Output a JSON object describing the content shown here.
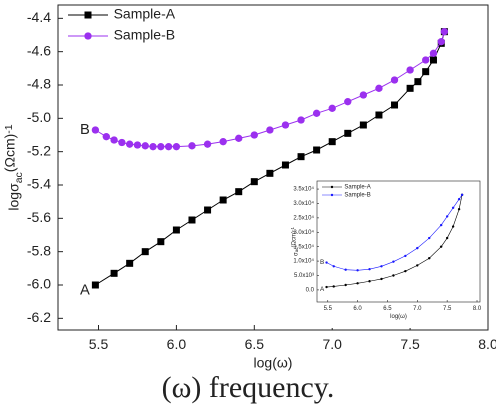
{
  "chart_data": [
    {
      "type": "scatter",
      "xlabel": "log(ω)",
      "ylabel": {
        "text": "logσ",
        "sub": "ac",
        "unit": "(Ωcm)",
        "sup": "-1"
      },
      "xlim": [
        5.24,
        8.0
      ],
      "ylim": [
        -6.27,
        -4.32
      ],
      "xticks": [
        5.5,
        {
          "value": 6,
          "label": "6.0"
        },
        6.5,
        {
          "value": 7,
          "label": "7.0"
        },
        7.5,
        {
          "value": 8,
          "label": "8.0"
        }
      ],
      "yticks": [
        -6.2,
        {
          "value": -6,
          "label": "-6.0"
        },
        -5.8,
        -5.6,
        -5.4,
        -5.2,
        {
          "value": -5,
          "label": "-5.0"
        },
        -4.8,
        -4.6,
        -4.4
      ],
      "legend": "upper left",
      "annotations": [
        "A",
        "B"
      ],
      "series": [
        {
          "name": "Sample-A",
          "color": "#000000",
          "marker": "square",
          "x": [
            5.48,
            5.6,
            5.7,
            5.8,
            5.9,
            6.0,
            6.1,
            6.2,
            6.3,
            6.4,
            6.5,
            6.6,
            6.7,
            6.8,
            6.9,
            7.0,
            7.1,
            7.2,
            7.3,
            7.4,
            7.5,
            7.55,
            7.6,
            7.65,
            7.7,
            7.72
          ],
          "values": [
            -6.0,
            -5.93,
            -5.87,
            -5.8,
            -5.74,
            -5.67,
            -5.61,
            -5.55,
            -5.49,
            -5.44,
            -5.38,
            -5.33,
            -5.28,
            -5.23,
            -5.19,
            -5.14,
            -5.09,
            -5.04,
            -4.98,
            -4.92,
            -4.82,
            -4.78,
            -4.72,
            -4.65,
            -4.55,
            -4.48
          ]
        },
        {
          "name": "Sample-B",
          "color": "#9b30ef",
          "marker": "circle",
          "x": [
            5.48,
            5.55,
            5.6,
            5.65,
            5.7,
            5.75,
            5.8,
            5.85,
            5.9,
            5.95,
            6.0,
            6.1,
            6.2,
            6.3,
            6.4,
            6.5,
            6.6,
            6.7,
            6.8,
            6.9,
            7.0,
            7.1,
            7.2,
            7.3,
            7.4,
            7.5,
            7.6,
            7.65,
            7.7,
            7.72
          ],
          "values": [
            -5.07,
            -5.11,
            -5.13,
            -5.145,
            -5.155,
            -5.16,
            -5.165,
            -5.17,
            -5.17,
            -5.17,
            -5.17,
            -5.165,
            -5.155,
            -5.14,
            -5.12,
            -5.1,
            -5.07,
            -5.04,
            -5.01,
            -4.97,
            -4.94,
            -4.9,
            -4.86,
            -4.82,
            -4.77,
            -4.71,
            -4.65,
            -4.61,
            -4.54,
            -4.48
          ]
        }
      ]
    },
    {
      "type": "scatter",
      "xlabel": "log(ω)",
      "ylabel": {
        "text": "σ",
        "sub": "ac",
        "unit": "(Ωcm)",
        "sup": "-1"
      },
      "xlim": [
        5.32,
        8.05
      ],
      "ylim": [
        -4200,
        37800
      ],
      "xticks": [
        5.5,
        {
          "value": 6,
          "label": "6.0"
        },
        6.5,
        {
          "value": 7,
          "label": "7.0"
        },
        7.5,
        {
          "value": 8,
          "label": "8.0"
        }
      ],
      "yticks": [
        {
          "value": 0,
          "label": "0.0"
        },
        {
          "value": 5000,
          "label": "5.0x10³"
        },
        {
          "value": 10000,
          "label": "1.0x10⁴"
        },
        {
          "value": 15000,
          "label": "1.5x10⁴"
        },
        {
          "value": 20000,
          "label": "2.0x10⁴"
        },
        {
          "value": 25000,
          "label": "2.5x10⁴"
        },
        {
          "value": 30000,
          "label": "3.0x10⁴"
        },
        {
          "value": 35000,
          "label": "3.5x10⁴"
        }
      ],
      "legend": "upper left",
      "annotations": [
        "A",
        "B"
      ],
      "series": [
        {
          "name": "Sample-A",
          "color": "#000000",
          "marker": "circle",
          "x": [
            5.48,
            5.6,
            5.8,
            6.0,
            6.2,
            6.4,
            6.6,
            6.8,
            7.0,
            7.2,
            7.4,
            7.5,
            7.6,
            7.7,
            7.75
          ],
          "values": [
            1000,
            1200,
            1700,
            2300,
            3000,
            3800,
            5000,
            6500,
            8500,
            11000,
            15000,
            18000,
            22000,
            28000,
            33000
          ]
        },
        {
          "name": "Sample-B",
          "color": "#1a1aff",
          "marker": "circle",
          "x": [
            5.48,
            5.6,
            5.8,
            6.0,
            6.2,
            6.4,
            6.6,
            6.8,
            7.0,
            7.2,
            7.4,
            7.5,
            7.6,
            7.7,
            7.75
          ],
          "values": [
            9500,
            8200,
            7000,
            6800,
            7200,
            8200,
            9800,
            11800,
            14500,
            18000,
            22500,
            25500,
            28500,
            31500,
            33000
          ]
        }
      ]
    }
  ],
  "caption": "(ω) frequency."
}
